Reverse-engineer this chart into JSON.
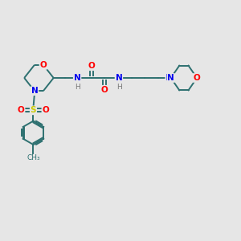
{
  "bg_color": "#e6e6e6",
  "bond_color": "#2d7070",
  "bond_lw": 1.4,
  "atom_colors": {
    "O": "#ff0000",
    "N": "#0000ee",
    "S": "#cccc00",
    "H": "#777777",
    "C": "#2d7070"
  },
  "font_size": 7.5,
  "small_font": 6.5
}
